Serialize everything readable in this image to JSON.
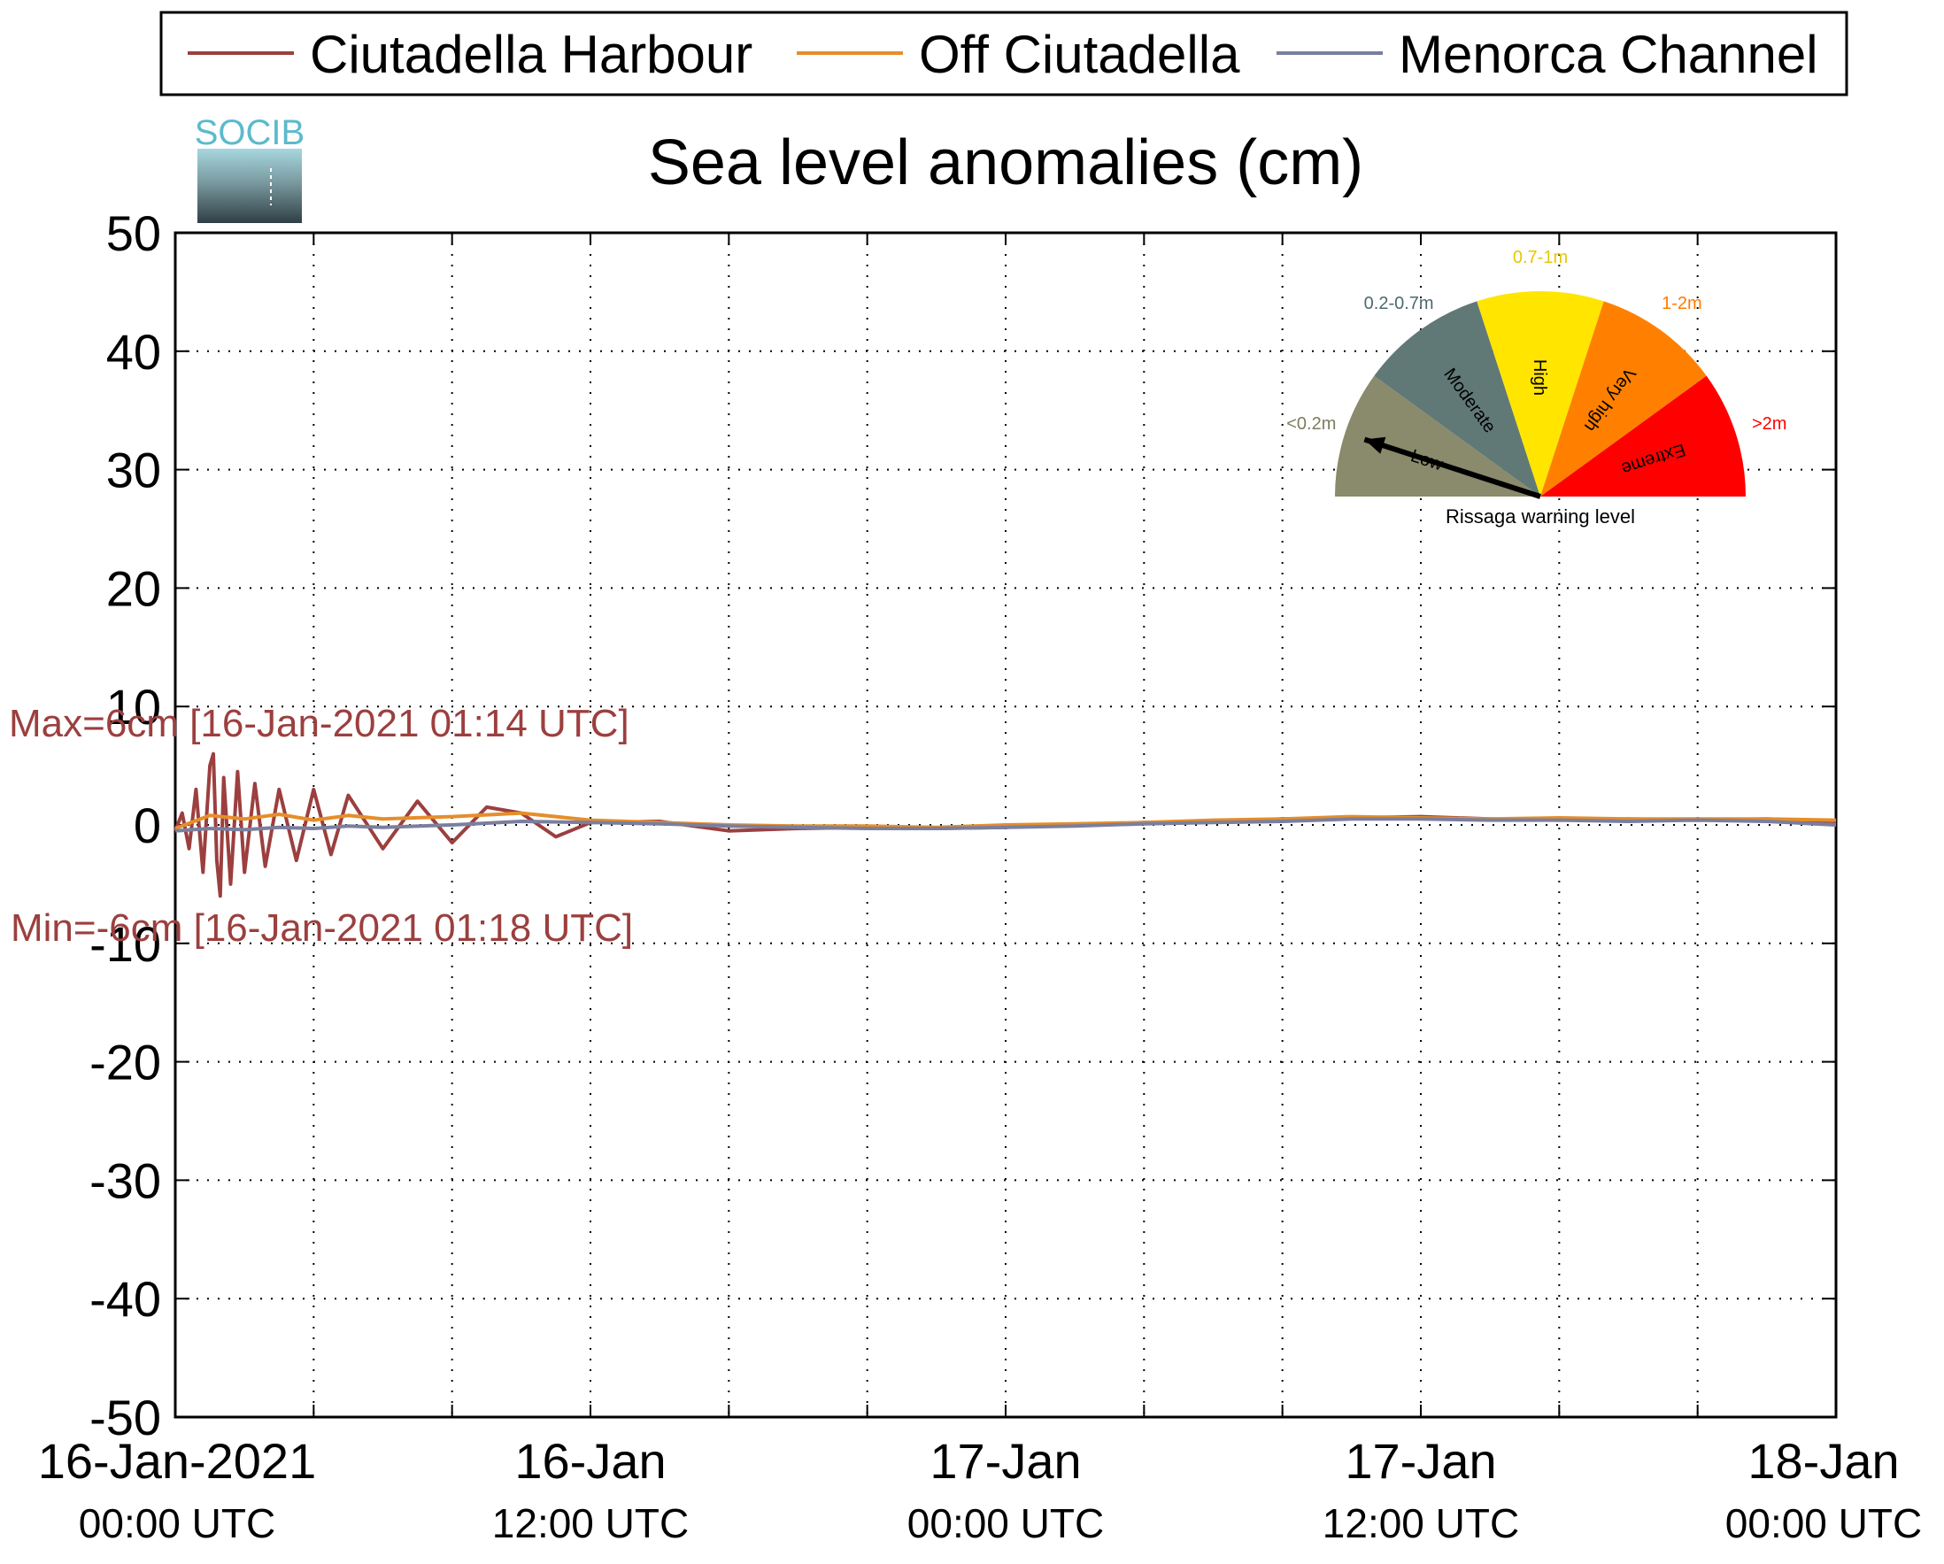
{
  "chart_data": {
    "type": "line",
    "title": "Sea level anomalies (cm)",
    "logo_text": "SOCIB",
    "ylim": [
      -50,
      50
    ],
    "yticks": [
      50,
      40,
      30,
      20,
      10,
      0,
      -10,
      -20,
      -30,
      -40,
      -50
    ],
    "x_range_hours": [
      0,
      48
    ],
    "xticks": [
      {
        "hour": 0,
        "date": "16-Jan-2021",
        "time": "00:00 UTC"
      },
      {
        "hour": 12,
        "date": "16-Jan",
        "time": "12:00 UTC"
      },
      {
        "hour": 24,
        "date": "17-Jan",
        "time": "00:00 UTC"
      },
      {
        "hour": 36,
        "date": "17-Jan",
        "time": "12:00 UTC"
      },
      {
        "hour": 48,
        "date": "18-Jan",
        "time": "00:00 UTC"
      }
    ],
    "grid": true,
    "legend_position": "top",
    "series": [
      {
        "name": "Ciutadella Harbour",
        "color": "#9c3f3f",
        "time_hours": [
          0,
          0.2,
          0.4,
          0.6,
          0.8,
          1.0,
          1.1,
          1.2,
          1.3,
          1.4,
          1.6,
          1.8,
          2.0,
          2.3,
          2.6,
          3.0,
          3.5,
          4.0,
          4.5,
          5.0,
          6.0,
          7.0,
          8.0,
          9.0,
          10.0,
          11.0,
          12.0,
          14.0,
          16.0,
          18.0,
          20.0,
          22.0,
          24.0,
          26.0,
          28.0,
          30.0,
          32.0,
          34.0,
          36.0,
          38.0,
          40.0,
          42.0,
          44.0,
          46.0,
          48.0
        ],
        "values": [
          -0.5,
          1.0,
          -2.0,
          3.0,
          -4.0,
          5.0,
          6.0,
          -3.0,
          -6.0,
          4.0,
          -5.0,
          4.5,
          -4.0,
          3.5,
          -3.5,
          3.0,
          -3.0,
          3.0,
          -2.5,
          2.5,
          -2.0,
          2.0,
          -1.5,
          1.5,
          1.0,
          -1.0,
          0.2,
          0.3,
          -0.5,
          -0.3,
          -0.2,
          -0.3,
          -0.2,
          0.0,
          0.2,
          0.3,
          0.5,
          0.6,
          0.7,
          0.5,
          0.4,
          0.5,
          0.4,
          0.5,
          0.3
        ]
      },
      {
        "name": "Off Ciutadella",
        "color": "#e58e2a",
        "time_hours": [
          0,
          1,
          2,
          3,
          4,
          5,
          6,
          8,
          10,
          12,
          14,
          16,
          18,
          20,
          22,
          24,
          26,
          28,
          30,
          32,
          34,
          36,
          38,
          40,
          42,
          44,
          46,
          48
        ],
        "values": [
          -0.3,
          0.8,
          0.5,
          0.9,
          0.4,
          0.8,
          0.5,
          0.7,
          1.0,
          0.4,
          0.2,
          0.0,
          -0.1,
          -0.1,
          -0.2,
          0.0,
          0.1,
          0.2,
          0.4,
          0.5,
          0.7,
          0.6,
          0.5,
          0.6,
          0.5,
          0.5,
          0.5,
          0.4
        ]
      },
      {
        "name": "Menorca Channel",
        "color": "#7a7f9e",
        "time_hours": [
          0,
          1,
          2,
          3,
          4,
          5,
          6,
          8,
          10,
          12,
          14,
          16,
          18,
          20,
          22,
          24,
          26,
          28,
          30,
          32,
          34,
          36,
          38,
          40,
          42,
          44,
          46,
          48
        ],
        "values": [
          -0.5,
          -0.3,
          -0.4,
          -0.2,
          -0.3,
          -0.1,
          -0.2,
          0.0,
          0.3,
          0.2,
          0.1,
          -0.1,
          -0.2,
          -0.3,
          -0.3,
          -0.2,
          -0.1,
          0.1,
          0.2,
          0.3,
          0.5,
          0.5,
          0.4,
          0.4,
          0.3,
          0.4,
          0.3,
          0.0
        ]
      }
    ],
    "annotations": {
      "max_label": "Max=6cm [16-Jan-2021 01:14 UTC]",
      "min_label": "Min=-6cm [16-Jan-2021 01:18 UTC]"
    },
    "gauge": {
      "title": "Rissaga warning level",
      "needle_level_index": 0,
      "levels": [
        {
          "name": "Low",
          "range": "<0.2m",
          "color": "#8a8a6c",
          "label_color": "#7d7d5e"
        },
        {
          "name": "Moderate",
          "range": "0.2-0.7m",
          "color": "#617976",
          "label_color": "#4b6a6e"
        },
        {
          "name": "High",
          "range": "0.7-1m",
          "color": "#ffe500",
          "label_color": "#e6c800"
        },
        {
          "name": "Very high",
          "range": "1-2m",
          "color": "#ff8000",
          "label_color": "#ff7a00"
        },
        {
          "name": "Extreme",
          "range": ">2m",
          "color": "#ff0000",
          "label_color": "#ff0000"
        }
      ]
    }
  }
}
